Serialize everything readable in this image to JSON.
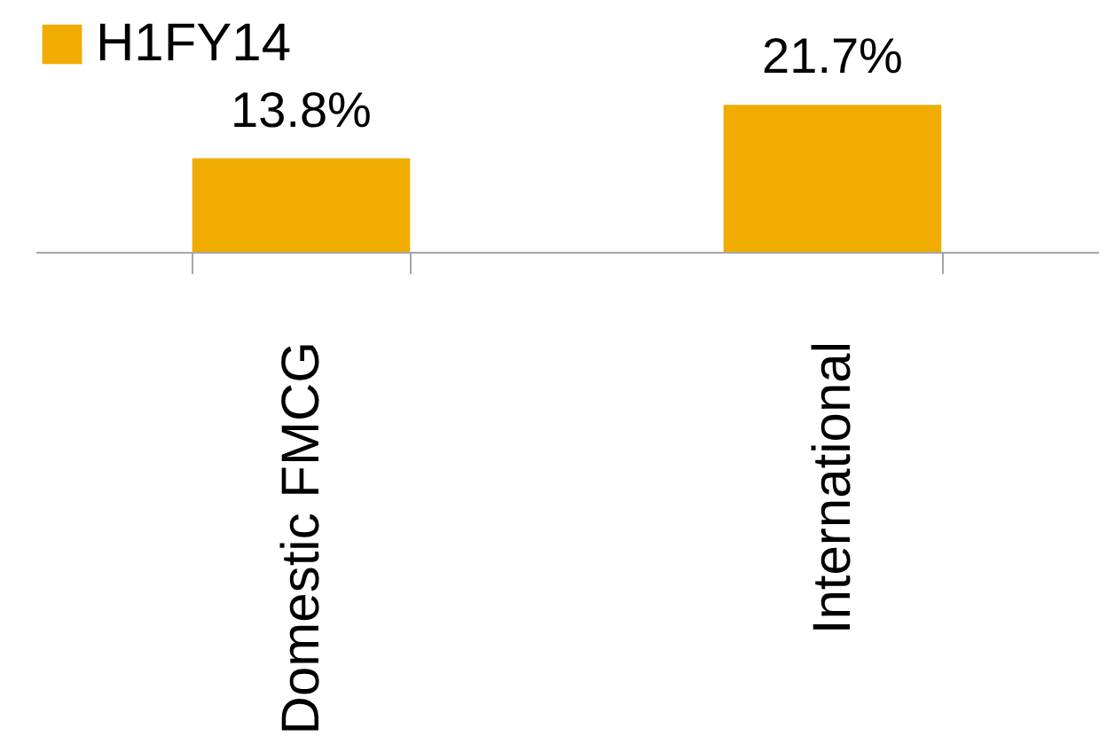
{
  "chart_data": {
    "type": "bar",
    "categories": [
      "Domestic FMCG",
      "International"
    ],
    "series": [
      {
        "name": "H1FY14",
        "color": "#f0ac00",
        "values": [
          13.8,
          21.7
        ],
        "value_labels": [
          "13.8%",
          "21.7%"
        ]
      }
    ],
    "legend": "top",
    "grid": false
  }
}
